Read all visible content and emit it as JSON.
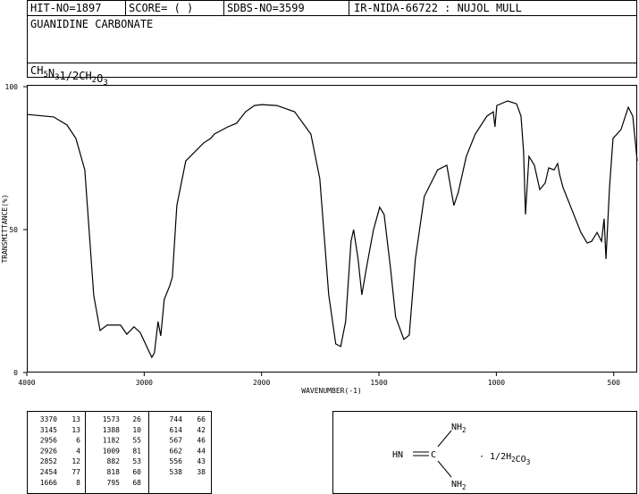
{
  "header": {
    "hit_no": "HIT-NO=1897",
    "score": "SCORE=  (   )",
    "sdbs_no": "SDBS-NO=3599",
    "method": "IR-NIDA-66722 : NUJOL MULL",
    "name": "GUANIDINE CARBONATE",
    "formula": [
      {
        "text": "CH"
      },
      {
        "text": "5",
        "sub": true
      },
      {
        "text": "N"
      },
      {
        "text": "3",
        "sub": true
      },
      {
        "text": "1/2"
      },
      {
        "text": "CH"
      },
      {
        "text": "2",
        "sub": true
      },
      {
        "text": "O"
      },
      {
        "text": "3",
        "sub": true
      }
    ]
  },
  "chart_data": {
    "type": "line",
    "ylabel": "TRANSMITTANCE(%)",
    "xlabel": "WAVENUMBER(-1)",
    "color": "#000000",
    "xlim": [
      4000,
      400
    ],
    "x_scale_break": 2000,
    "x_scale_factor": 2,
    "xticks": [
      4000,
      3000,
      2000,
      1500,
      1000,
      500
    ],
    "ylim": [
      0,
      100
    ],
    "yticks": [
      0,
      50,
      100
    ],
    "x": [
      4000,
      3772,
      3658,
      3582,
      3506,
      3468,
      3430,
      3376,
      3316,
      3202,
      3148,
      3087,
      3034,
      2989,
      2935,
      2913,
      2882,
      2859,
      2829,
      2783,
      2760,
      2722,
      2646,
      2494,
      2433,
      2403,
      2289,
      2213,
      2137,
      2061,
      2000,
      1935,
      1859,
      1790,
      1752,
      1714,
      1684,
      1663,
      1642,
      1619,
      1608,
      1589,
      1573,
      1550,
      1524,
      1497,
      1478,
      1451,
      1429,
      1394,
      1371,
      1345,
      1307,
      1250,
      1211,
      1181,
      1162,
      1128,
      1090,
      1040,
      1013,
      1006,
      998,
      952,
      914,
      895,
      884,
      876,
      861,
      838,
      815,
      792,
      777,
      754,
      739,
      731,
      716,
      678,
      640,
      613,
      594,
      571,
      552,
      541,
      533,
      518,
      503,
      469,
      438,
      419,
      400
    ],
    "values": [
      90.3,
      89.4,
      86.6,
      81.9,
      70.9,
      49,
      27,
      14.7,
      16.6,
      16.6,
      13.4,
      16,
      14,
      10,
      5.3,
      6.9,
      17.8,
      12.8,
      25.6,
      30.3,
      33.4,
      58.4,
      74,
      80.3,
      81.9,
      83.4,
      85.9,
      87.2,
      91.2,
      93.4,
      93.7,
      93.4,
      91.2,
      83.4,
      67.8,
      27.2,
      10,
      9.1,
      17.8,
      45.9,
      50,
      39.7,
      27.2,
      38.1,
      49.7,
      57.8,
      55.3,
      36.6,
      19.4,
      11.6,
      13.1,
      39.7,
      61.6,
      70.9,
      72.5,
      58.4,
      63.1,
      75.6,
      83.4,
      89.7,
      91.2,
      85.9,
      93.4,
      95,
      94,
      89.7,
      77.2,
      55.3,
      75.6,
      72.5,
      64,
      66.3,
      71.6,
      70.9,
      73.1,
      69.4,
      64.7,
      56.9,
      49,
      45.3,
      45.9,
      49,
      45.9,
      53.8,
      39.7,
      64.7,
      81.9,
      85,
      92.8,
      89.7,
      74
    ]
  },
  "peaks": [
    [
      3370,
      13
    ],
    [
      3145,
      13
    ],
    [
      2956,
      6
    ],
    [
      2926,
      4
    ],
    [
      2852,
      12
    ],
    [
      2454,
      77
    ],
    [
      1666,
      8
    ],
    [
      1573,
      26
    ],
    [
      1388,
      10
    ],
    [
      1182,
      55
    ],
    [
      1009,
      81
    ],
    [
      882,
      53
    ],
    [
      818,
      60
    ],
    [
      795,
      68
    ],
    [
      744,
      66
    ],
    [
      614,
      42
    ],
    [
      567,
      46
    ],
    [
      662,
      44
    ],
    [
      556,
      43
    ],
    [
      538,
      38
    ]
  ],
  "structure": {
    "nh2_top": [
      {
        "text": "NH"
      },
      {
        "text": "2",
        "sub": true
      }
    ],
    "hn": [
      {
        "text": "HN"
      }
    ],
    "c": [
      {
        "text": "C"
      }
    ],
    "nh2_bottom": [
      {
        "text": "NH"
      },
      {
        "text": "2",
        "sub": true
      }
    ],
    "salt": [
      {
        "text": "· 1/2H"
      },
      {
        "text": "2",
        "sub": true
      },
      {
        "text": "CO"
      },
      {
        "text": "3",
        "sub": true
      }
    ]
  }
}
